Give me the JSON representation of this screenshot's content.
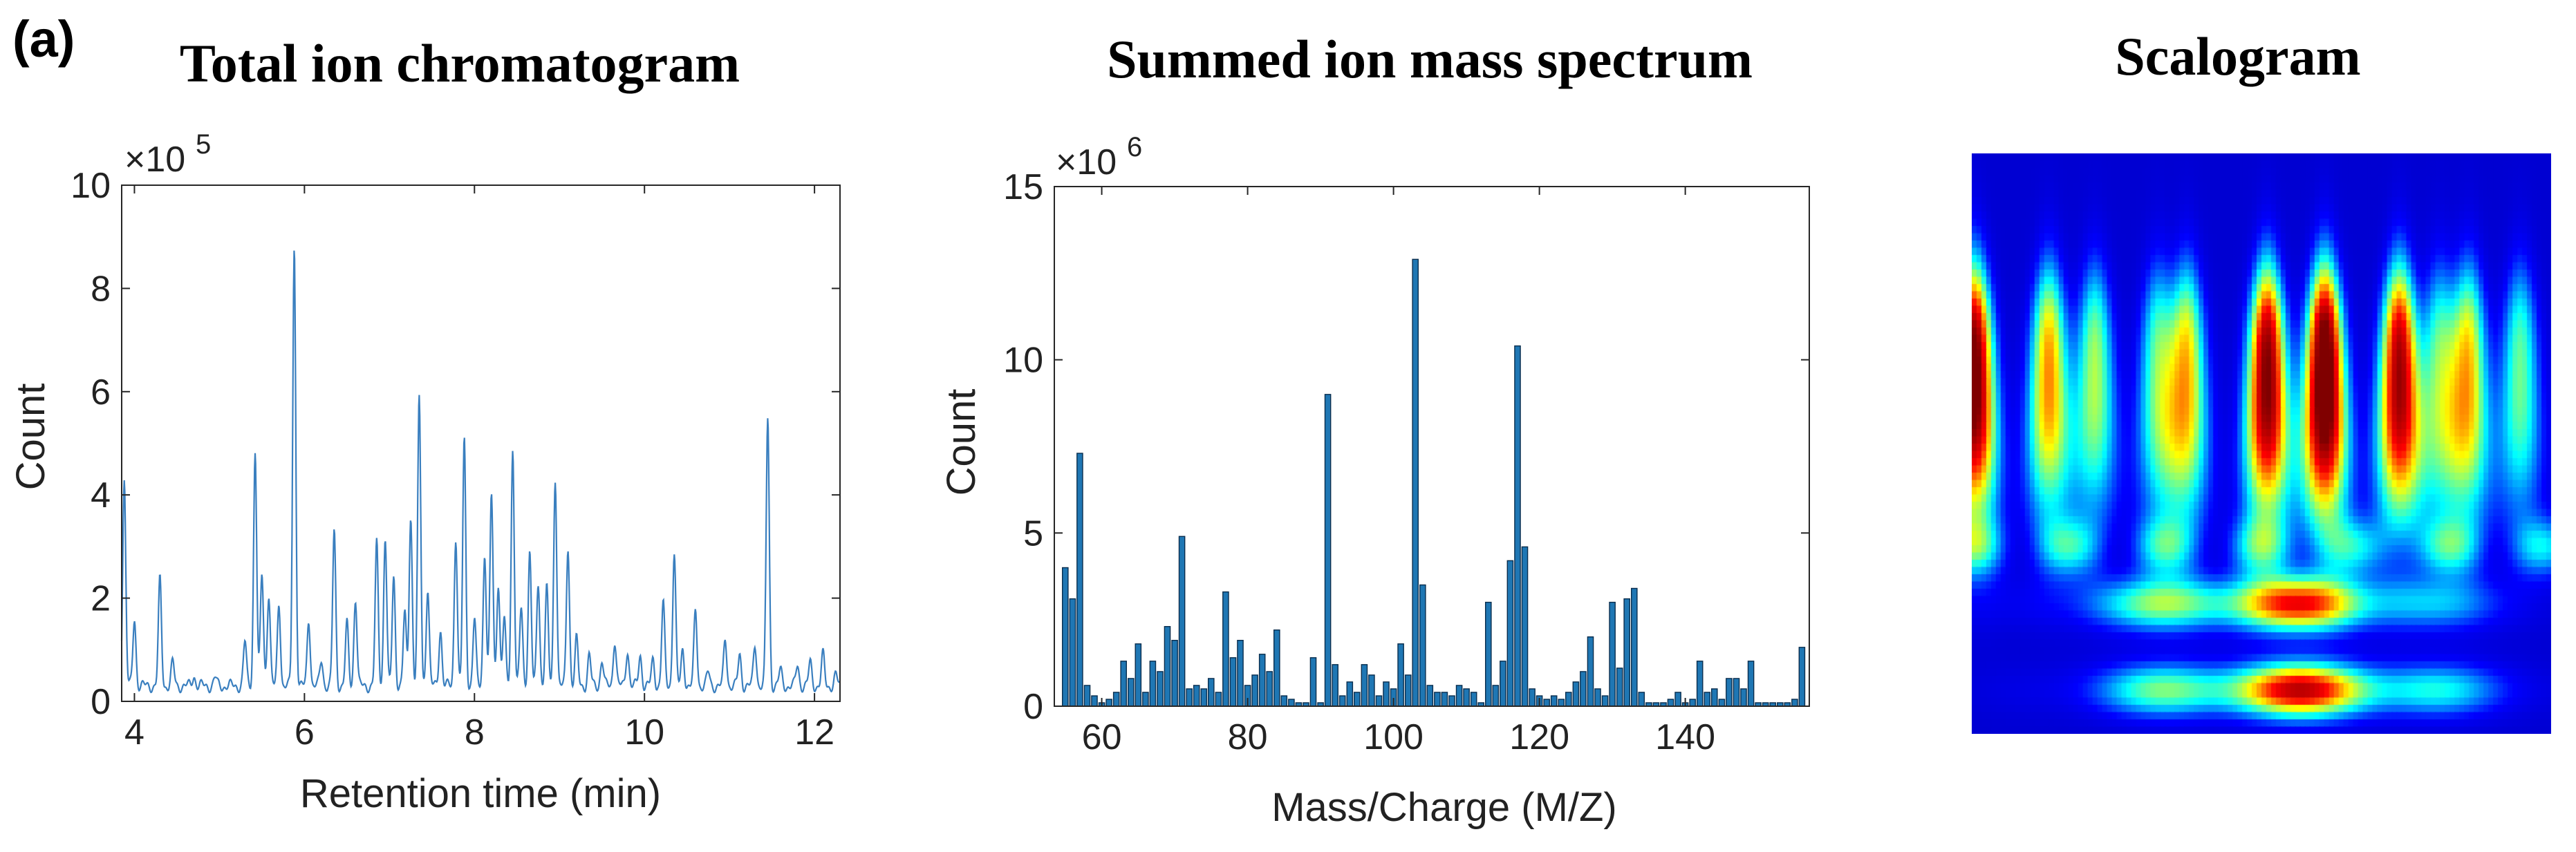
{
  "panel_label": "(a)",
  "chart_data": [
    {
      "type": "line",
      "title": "Total ion chromatogram",
      "xlabel": "Retention time (min)",
      "ylabel": "Count",
      "exponent_base": "×10",
      "exponent_power": "5",
      "xlim": [
        3.85,
        12.3
      ],
      "ylim": [
        0,
        10
      ],
      "xticks": [
        "4",
        "6",
        "8",
        "10",
        "12"
      ],
      "yticks": [
        "0",
        "2",
        "4",
        "6",
        "8",
        "10"
      ],
      "color": "#3a7fbf",
      "baseline": 0.3,
      "peaks": [
        {
          "x": 3.88,
          "y": 4.3
        },
        {
          "x": 4.0,
          "y": 1.6
        },
        {
          "x": 4.3,
          "y": 2.35
        },
        {
          "x": 4.45,
          "y": 0.75
        },
        {
          "x": 4.7,
          "y": 0.5
        },
        {
          "x": 4.95,
          "y": 0.45
        },
        {
          "x": 5.3,
          "y": 1.15
        },
        {
          "x": 5.42,
          "y": 4.85
        },
        {
          "x": 5.5,
          "y": 2.45
        },
        {
          "x": 5.58,
          "y": 2.1
        },
        {
          "x": 5.7,
          "y": 1.9
        },
        {
          "x": 5.88,
          "y": 8.8
        },
        {
          "x": 6.05,
          "y": 1.6
        },
        {
          "x": 6.2,
          "y": 0.8
        },
        {
          "x": 6.35,
          "y": 3.3
        },
        {
          "x": 6.5,
          "y": 1.5
        },
        {
          "x": 6.6,
          "y": 2.0
        },
        {
          "x": 6.85,
          "y": 3.05
        },
        {
          "x": 6.95,
          "y": 3.2
        },
        {
          "x": 7.05,
          "y": 2.4
        },
        {
          "x": 7.18,
          "y": 1.7
        },
        {
          "x": 7.25,
          "y": 3.6
        },
        {
          "x": 7.35,
          "y": 5.85
        },
        {
          "x": 7.45,
          "y": 2.2
        },
        {
          "x": 7.6,
          "y": 1.4
        },
        {
          "x": 7.78,
          "y": 3.2
        },
        {
          "x": 7.88,
          "y": 5.05
        },
        {
          "x": 8.0,
          "y": 1.6
        },
        {
          "x": 8.12,
          "y": 2.9
        },
        {
          "x": 8.2,
          "y": 4.0
        },
        {
          "x": 8.28,
          "y": 2.3
        },
        {
          "x": 8.35,
          "y": 1.6
        },
        {
          "x": 8.45,
          "y": 4.9
        },
        {
          "x": 8.55,
          "y": 1.8
        },
        {
          "x": 8.65,
          "y": 2.9
        },
        {
          "x": 8.75,
          "y": 2.3
        },
        {
          "x": 8.85,
          "y": 2.2
        },
        {
          "x": 8.95,
          "y": 4.35
        },
        {
          "x": 9.1,
          "y": 3.0
        },
        {
          "x": 9.2,
          "y": 1.2
        },
        {
          "x": 9.35,
          "y": 0.9
        },
        {
          "x": 9.5,
          "y": 0.8
        },
        {
          "x": 9.65,
          "y": 1.2
        },
        {
          "x": 9.8,
          "y": 1.0
        },
        {
          "x": 9.95,
          "y": 0.9
        },
        {
          "x": 10.1,
          "y": 0.8
        },
        {
          "x": 10.22,
          "y": 1.9
        },
        {
          "x": 10.35,
          "y": 2.9
        },
        {
          "x": 10.45,
          "y": 1.0
        },
        {
          "x": 10.6,
          "y": 1.75
        },
        {
          "x": 10.75,
          "y": 0.55
        },
        {
          "x": 10.95,
          "y": 1.2
        },
        {
          "x": 11.12,
          "y": 0.9
        },
        {
          "x": 11.3,
          "y": 1.1
        },
        {
          "x": 11.45,
          "y": 5.5
        },
        {
          "x": 11.6,
          "y": 0.6
        },
        {
          "x": 11.8,
          "y": 0.7
        },
        {
          "x": 11.95,
          "y": 0.75
        },
        {
          "x": 12.1,
          "y": 0.9
        },
        {
          "x": 12.25,
          "y": 0.5
        }
      ]
    },
    {
      "type": "bar",
      "title": "Summed ion mass spectrum",
      "xlabel": "Mass/Charge (M/Z)",
      "ylabel": "Count",
      "exponent_base": "×10",
      "exponent_power": "6",
      "xlim": [
        53.5,
        157
      ],
      "ylim": [
        0,
        15
      ],
      "xticks": [
        "60",
        "80",
        "100",
        "120",
        "140"
      ],
      "yticks": [
        "0",
        "5",
        "10",
        "15"
      ],
      "color": "#1f77b4",
      "mz": [
        55,
        56,
        57,
        58,
        59,
        60,
        61,
        62,
        63,
        64,
        65,
        66,
        67,
        68,
        69,
        70,
        71,
        72,
        73,
        74,
        75,
        76,
        77,
        78,
        79,
        80,
        81,
        82,
        83,
        84,
        85,
        86,
        87,
        88,
        89,
        90,
        91,
        92,
        93,
        94,
        95,
        96,
        97,
        98,
        99,
        100,
        101,
        102,
        103,
        104,
        105,
        106,
        107,
        108,
        109,
        110,
        111,
        112,
        113,
        114,
        115,
        116,
        117,
        118,
        119,
        120,
        121,
        122,
        123,
        124,
        125,
        126,
        127,
        128,
        129,
        130,
        131,
        132,
        133,
        134,
        135,
        136,
        137,
        138,
        139,
        140,
        141,
        142,
        143,
        144,
        145,
        146,
        147,
        148,
        149,
        150,
        151,
        152,
        153,
        154,
        155,
        156
      ],
      "values": [
        4.0,
        3.1,
        7.3,
        0.6,
        0.3,
        0.1,
        0.2,
        0.4,
        1.3,
        0.8,
        1.8,
        0.4,
        1.3,
        1.0,
        2.3,
        1.9,
        4.9,
        0.5,
        0.6,
        0.5,
        0.8,
        0.4,
        3.3,
        1.4,
        1.9,
        0.6,
        0.9,
        1.5,
        1.0,
        2.2,
        0.3,
        0.2,
        0.1,
        0.1,
        1.4,
        0.1,
        9.0,
        1.2,
        0.3,
        0.7,
        0.4,
        1.2,
        0.9,
        0.3,
        0.7,
        0.5,
        1.8,
        0.9,
        12.9,
        3.5,
        0.6,
        0.4,
        0.4,
        0.3,
        0.6,
        0.5,
        0.4,
        0.1,
        3.0,
        0.6,
        1.3,
        4.2,
        10.4,
        4.6,
        0.5,
        0.3,
        0.2,
        0.3,
        0.2,
        0.4,
        0.7,
        1.0,
        2.0,
        0.5,
        0.3,
        3.0,
        1.1,
        3.1,
        3.4,
        0.4,
        0.1,
        0.1,
        0.1,
        0.2,
        0.4,
        0.1,
        0.2,
        1.3,
        0.4,
        0.5,
        0.2,
        0.8,
        0.8,
        0.5,
        1.3,
        0.1,
        0.1,
        0.1,
        0.1,
        0.1,
        0.2,
        1.7
      ]
    },
    {
      "type": "heatmap",
      "title": "Scalogram",
      "colormap": [
        "#00008f",
        "#0000ff",
        "#00ffff",
        "#ffff00",
        "#ff0000",
        "#800000"
      ],
      "n_time": 120,
      "n_scale": 80,
      "vertical_streaks": [
        {
          "t": 0.0,
          "intensity": 0.9
        },
        {
          "t": 0.13,
          "intensity": 0.55
        },
        {
          "t": 0.21,
          "intensity": 0.4
        },
        {
          "t": 0.32,
          "intensity": 0.35
        },
        {
          "t": 0.37,
          "intensity": 0.5
        },
        {
          "t": 0.51,
          "intensity": 0.85
        },
        {
          "t": 0.61,
          "intensity": 0.98
        },
        {
          "t": 0.74,
          "intensity": 0.8
        },
        {
          "t": 0.81,
          "intensity": 0.35
        },
        {
          "t": 0.86,
          "intensity": 0.5
        },
        {
          "t": 0.95,
          "intensity": 0.35
        }
      ],
      "horizontal_bands": [
        {
          "scale": 0.78,
          "t_center": 0.52,
          "intensity": 0.7
        },
        {
          "scale": 0.93,
          "t_center": 0.55,
          "intensity": 0.8
        }
      ]
    }
  ]
}
